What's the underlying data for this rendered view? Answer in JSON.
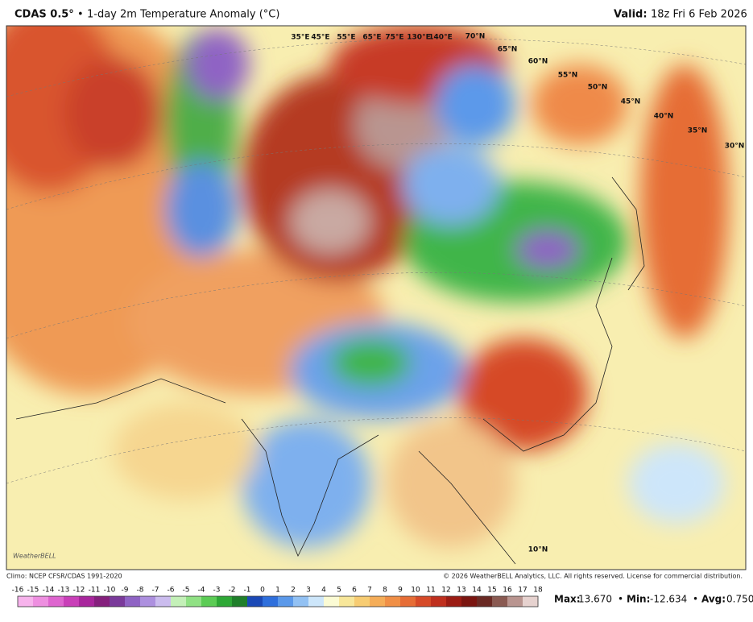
{
  "header": {
    "model": "CDAS 0.5°",
    "bullet": "•",
    "title": "1-day 2m Temperature Anomaly (°C)",
    "valid_label": "Valid:",
    "valid_time": "18z Fri 6 Feb 2026"
  },
  "map": {
    "grid_labels": [
      "70°N",
      "65°N",
      "60°N",
      "55°N",
      "50°N",
      "45°N",
      "40°N",
      "35°N",
      "30°N",
      "35°E",
      "45°E",
      "55°E",
      "65°E",
      "75°E",
      "130°E",
      "140°E",
      "10°N"
    ],
    "logo": "WeatherBELL"
  },
  "footer": {
    "climo": "Climo: NCEP CFSR/CDAS 1991-2020",
    "copyright": "© 2026 WeatherBELL Analytics, LLC. All rights reserved. License for commercial distribution."
  },
  "colorbar": {
    "labels": [
      "-16",
      "-15",
      "-14",
      "-13",
      "-12",
      "-11",
      "-10",
      "-9",
      "-8",
      "-7",
      "-6",
      "-5",
      "-4",
      "-3",
      "-2",
      "-1",
      "0",
      "1",
      "2",
      "3",
      "4",
      "5",
      "6",
      "7",
      "8",
      "9",
      "10",
      "11",
      "12",
      "13",
      "14",
      "15",
      "16",
      "17",
      "18"
    ],
    "colors": [
      "#f7b3ec",
      "#ee8fe0",
      "#de65cf",
      "#c93fb8",
      "#a8269c",
      "#85207d",
      "#7a3a9a",
      "#8f63c4",
      "#ad90df",
      "#cbbcee",
      "#c4f0b8",
      "#90e184",
      "#5ccc55",
      "#2ea836",
      "#1f7f2a",
      "#1b49b6",
      "#2f6fdc",
      "#5b99ea",
      "#92c1f3",
      "#cde6fa",
      "#fbfbd4",
      "#f8e79a",
      "#f7cc72",
      "#f5ad58",
      "#f08f46",
      "#e66d36",
      "#d64a28",
      "#bf2f1e",
      "#9b1c14",
      "#7a1510",
      "#6a2a24",
      "#8a5a52",
      "#b99590",
      "#e6d2cf"
    ]
  },
  "stats": {
    "max_label": "Max:",
    "max": "13.670",
    "min_label": "Min:",
    "min": "-12.634",
    "avg_label": "Avg:",
    "avg": "0.750",
    "sep": "•"
  }
}
